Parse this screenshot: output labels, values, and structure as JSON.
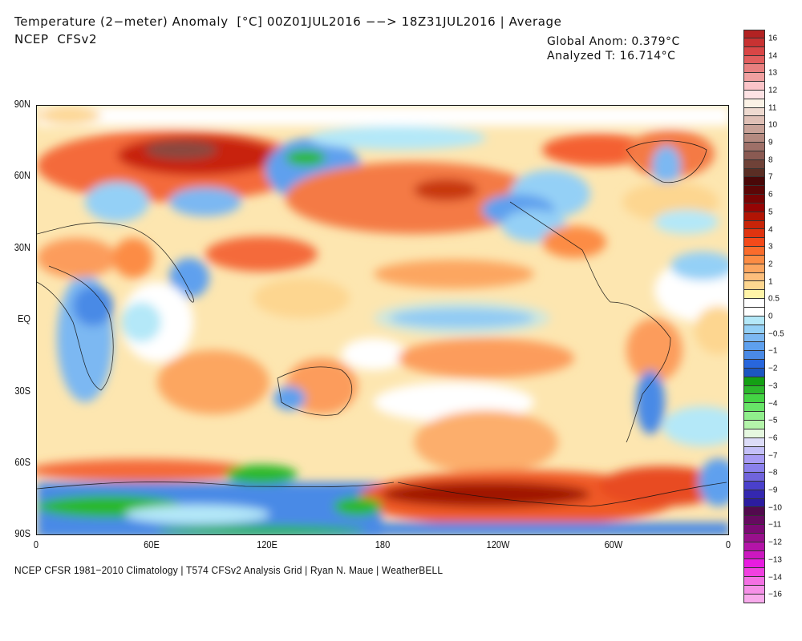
{
  "header": {
    "title": "Temperature (2−meter) Anomaly  [°C] 00Z01JUL2016 −−> 18Z31JUL2016 | Average",
    "subtitle": "NCEP  CFSv2",
    "global_anom": "Global Anom: 0.379°C",
    "analyzed_t": "Analyzed T: 16.714°C"
  },
  "axes": {
    "y_labels": [
      "90N",
      "60N",
      "30N",
      "EQ",
      "30S",
      "60S",
      "90S"
    ],
    "x_labels": [
      "0",
      "60E",
      "120E",
      "180",
      "120W",
      "60W",
      "0"
    ]
  },
  "footer": {
    "credit": "NCEP CFSR 1981−2010 Climatology | T574 CFSv2 Analysis Grid | Ryan N. Maue | WeatherBELL"
  },
  "legend": {
    "labels": [
      {
        "text": "16",
        "index": 1
      },
      {
        "text": "14",
        "index": 3
      },
      {
        "text": "13",
        "index": 5
      },
      {
        "text": "12",
        "index": 7
      },
      {
        "text": "11",
        "index": 9
      },
      {
        "text": "10",
        "index": 11
      },
      {
        "text": "9",
        "index": 13
      },
      {
        "text": "8",
        "index": 15
      },
      {
        "text": "7",
        "index": 17
      },
      {
        "text": "6",
        "index": 19
      },
      {
        "text": "5",
        "index": 21
      },
      {
        "text": "4",
        "index": 23
      },
      {
        "text": "3",
        "index": 25
      },
      {
        "text": "2",
        "index": 27
      },
      {
        "text": "1",
        "index": 29
      },
      {
        "text": "0.5",
        "index": 31
      },
      {
        "text": "0",
        "index": 33
      },
      {
        "text": "−0.5",
        "index": 35
      },
      {
        "text": "−1",
        "index": 37
      },
      {
        "text": "−2",
        "index": 39
      },
      {
        "text": "−3",
        "index": 41
      },
      {
        "text": "−4",
        "index": 43
      },
      {
        "text": "−5",
        "index": 45
      },
      {
        "text": "−6",
        "index": 47
      },
      {
        "text": "−7",
        "index": 49
      },
      {
        "text": "−8",
        "index": 51
      },
      {
        "text": "−9",
        "index": 53
      },
      {
        "text": "−10",
        "index": 55
      },
      {
        "text": "−11",
        "index": 57
      },
      {
        "text": "−12",
        "index": 59
      },
      {
        "text": "−13",
        "index": 61
      },
      {
        "text": "−14",
        "index": 63
      },
      {
        "text": "−16",
        "index": 65
      }
    ],
    "colors": [
      "#b22222",
      "#c83232",
      "#d94646",
      "#e25e5e",
      "#e88080",
      "#f0a0a0",
      "#fbc4c8",
      "#fde2e4",
      "#fbf2e6",
      "#eedad0",
      "#dfc0b6",
      "#c8a298",
      "#b48a80",
      "#9e7068",
      "#8a5a52",
      "#6f4238",
      "#5a2e24",
      "#4a0808",
      "#5c0606",
      "#780404",
      "#960404",
      "#b21404",
      "#c82408",
      "#e03410",
      "#f44a1a",
      "#fa6c2c",
      "#fc8c44",
      "#fca660",
      "#fdbe7c",
      "#fdd690",
      "#fff4a8",
      "#ffffff",
      "#ffffff",
      "#b4e8f8",
      "#94d0f6",
      "#7cb8f2",
      "#5ea0ee",
      "#4a8ae6",
      "#2866dc",
      "#1c56c0",
      "#14a014",
      "#2cb82c",
      "#44d444",
      "#68e468",
      "#90ee8c",
      "#b4f4aa",
      "#e6f8e0",
      "#dcdcf8",
      "#c4c0f8",
      "#a89cf4",
      "#8a80ec",
      "#7064dc",
      "#4a40cc",
      "#3428b0",
      "#2c1ca0",
      "#520a4e",
      "#660a60",
      "#7c0a74",
      "#98108c",
      "#b414a8",
      "#cc18c0",
      "#e81ce0",
      "#f040e0",
      "#f470e4",
      "#f690e8",
      "#f8aaec"
    ]
  }
}
